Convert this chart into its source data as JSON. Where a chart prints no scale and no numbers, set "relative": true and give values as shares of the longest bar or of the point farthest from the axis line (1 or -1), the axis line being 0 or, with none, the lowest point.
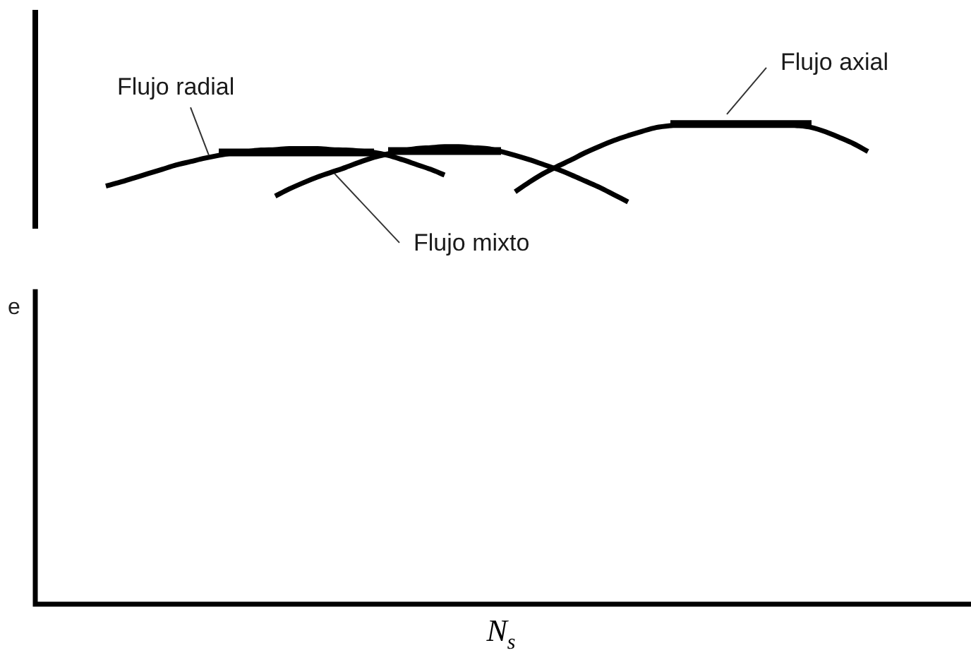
{
  "chart_data": {
    "type": "line",
    "relative": true,
    "xlabel": "N$_{s}$",
    "ylabel": "e",
    "legend": false,
    "grid": false,
    "marker": "none",
    "line_style": "solid",
    "tick_labels": false,
    "categories": [
      null,
      null,
      null,
      null,
      null,
      null,
      null,
      null,
      null,
      null,
      null,
      null,
      null,
      null,
      null,
      null,
      null,
      null,
      null,
      null,
      null,
      null,
      null,
      null,
      null,
      null,
      null,
      null,
      null,
      null,
      null,
      null,
      null,
      null,
      null,
      null,
      null,
      null,
      null,
      null,
      null,
      null,
      null,
      null,
      null,
      null,
      null,
      null,
      null,
      null,
      null,
      null,
      null,
      null,
      null,
      null,
      null,
      null,
      null,
      null,
      null,
      null,
      null,
      null,
      null,
      null,
      null
    ],
    "series": [
      {
        "name": "Flujo radial",
        "color": "#000000",
        "values": [
          null,
          null,
          null,
          null,
          null,
          0.871,
          0.879,
          0.888,
          0.897,
          0.906,
          0.915,
          0.922,
          0.929,
          0.935,
          0.94,
          0.943,
          0.946,
          0.947,
          0.949,
          0.949,
          0.949,
          0.947,
          0.946,
          0.944,
          0.941,
          0.935,
          0.926,
          0.916,
          0.906,
          0.894,
          null,
          null,
          null,
          null,
          null,
          null,
          null,
          null,
          null,
          null,
          null,
          null,
          null,
          null,
          null,
          null,
          null,
          null,
          null,
          null,
          null,
          null,
          null,
          null,
          null,
          null,
          null,
          null,
          null,
          null,
          null,
          null,
          null,
          null,
          null,
          null,
          null
        ]
      },
      {
        "name": "Flujo mixto",
        "color": "#000000",
        "values": [
          null,
          null,
          null,
          null,
          null,
          null,
          null,
          null,
          null,
          null,
          null,
          null,
          null,
          null,
          null,
          null,
          null,
          0.85,
          0.865,
          0.878,
          0.89,
          0.9,
          0.91,
          0.921,
          0.931,
          0.938,
          0.944,
          0.949,
          0.951,
          0.953,
          0.953,
          0.951,
          0.949,
          0.943,
          0.935,
          0.926,
          0.916,
          0.906,
          0.894,
          0.881,
          0.868,
          0.853,
          0.838,
          null,
          null,
          null,
          null,
          null,
          null,
          null,
          null,
          null,
          null,
          null,
          null,
          null,
          null,
          null,
          null,
          null,
          null,
          null,
          null,
          null,
          null,
          null,
          null
        ]
      },
      {
        "name": "Flujo axial",
        "color": "#000000",
        "values": [
          null,
          null,
          null,
          null,
          null,
          null,
          null,
          null,
          null,
          null,
          null,
          null,
          null,
          null,
          null,
          null,
          null,
          null,
          null,
          null,
          null,
          null,
          null,
          null,
          null,
          null,
          null,
          null,
          null,
          null,
          null,
          null,
          null,
          null,
          0.859,
          0.879,
          0.897,
          0.912,
          0.926,
          0.941,
          0.954,
          0.966,
          0.976,
          0.985,
          0.993,
          0.997,
          0.999,
          1,
          1,
          1,
          1,
          1,
          1,
          0.999,
          0.997,
          0.993,
          0.984,
          0.972,
          0.959,
          0.943,
          null,
          null,
          null,
          null,
          null,
          null,
          null
        ]
      },
      {
        "color": "#000000",
        "values": [
          null,
          null,
          null,
          null,
          null,
          null,
          null,
          null,
          null,
          null,
          null,
          null,
          null,
          0.941,
          0.941,
          0.941,
          0.941,
          0.941,
          0.941,
          0.941,
          0.941,
          0.941,
          0.941,
          0.941,
          0.941,
          null,
          null,
          null,
          null,
          null,
          null,
          null,
          null,
          null,
          null,
          null,
          null,
          null,
          null,
          null,
          null,
          null,
          null,
          null,
          null,
          null,
          null,
          null,
          null,
          null,
          null,
          null,
          null,
          null,
          null,
          null,
          null,
          null,
          null,
          null,
          null,
          null,
          null,
          null,
          null,
          null,
          null
        ]
      },
      {
        "color": "#000000",
        "values": [
          null,
          null,
          null,
          null,
          null,
          null,
          null,
          null,
          null,
          null,
          null,
          null,
          null,
          null,
          null,
          null,
          null,
          null,
          null,
          null,
          null,
          null,
          null,
          null,
          null,
          0.944,
          0.944,
          0.944,
          0.944,
          0.944,
          0.944,
          0.944,
          0.944,
          0.944,
          null,
          null,
          null,
          null,
          null,
          null,
          null,
          null,
          null,
          null,
          null,
          null,
          null,
          null,
          null,
          null,
          null,
          null,
          null,
          null,
          null,
          null,
          null,
          null,
          null,
          null,
          null,
          null,
          null,
          null,
          null,
          null,
          null
        ]
      },
      {
        "color": "#000000",
        "values": [
          null,
          null,
          null,
          null,
          null,
          null,
          null,
          null,
          null,
          null,
          null,
          null,
          null,
          null,
          null,
          null,
          null,
          null,
          null,
          null,
          null,
          null,
          null,
          null,
          null,
          null,
          null,
          null,
          null,
          null,
          null,
          null,
          null,
          null,
          null,
          null,
          null,
          null,
          null,
          null,
          null,
          null,
          null,
          null,
          null,
          1,
          1,
          1,
          1,
          1,
          1,
          1,
          1,
          1,
          1,
          1,
          null,
          null,
          null,
          null,
          null,
          null,
          null,
          null,
          null,
          null,
          null
        ]
      }
    ]
  }
}
